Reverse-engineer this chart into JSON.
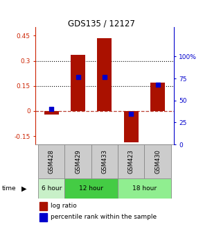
{
  "title": "GDS135 / 12127",
  "samples": [
    "GSM428",
    "GSM429",
    "GSM433",
    "GSM423",
    "GSM430"
  ],
  "log_ratios": [
    -0.022,
    0.335,
    0.435,
    -0.185,
    0.17
  ],
  "percentile_ranks": [
    40,
    77,
    77,
    35,
    68
  ],
  "time_groups": [
    {
      "label": "6 hour",
      "start": 0,
      "end": 1,
      "color": "#c8f0c8"
    },
    {
      "label": "12 hour",
      "start": 1,
      "end": 3,
      "color": "#44cc44"
    },
    {
      "label": "18 hour",
      "start": 3,
      "end": 5,
      "color": "#90ee90"
    }
  ],
  "ylim_left": [
    -0.2,
    0.5
  ],
  "ylim_right": [
    0,
    133.33
  ],
  "yticks_left": [
    -0.15,
    0,
    0.15,
    0.3,
    0.45
  ],
  "yticks_right": [
    0,
    25,
    50,
    75,
    100
  ],
  "ytick_labels_left": [
    "-0.15",
    "0",
    "0.15",
    "0.3",
    "0.45"
  ],
  "ytick_labels_right": [
    "0",
    "25",
    "50",
    "75",
    "100%"
  ],
  "hlines_dotted": [
    0.15,
    0.3
  ],
  "hline_dashed": 0,
  "bar_color": "#aa1100",
  "scatter_color": "#0000cc",
  "bar_width": 0.55,
  "left_yaxis_color": "#cc2200",
  "right_yaxis_color": "#0000cc",
  "legend_bar_label": "log ratio",
  "legend_scatter_label": "percentile rank within the sample",
  "time_label": "time",
  "sample_bg_color": "#cccccc",
  "sample_border_color": "#888888"
}
